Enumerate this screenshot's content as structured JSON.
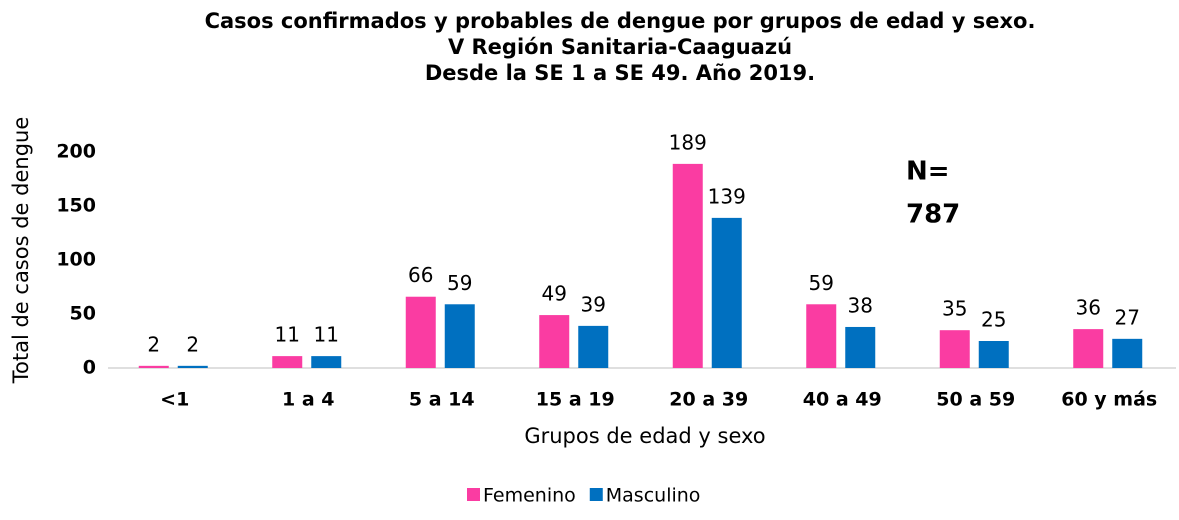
{
  "chart_data": {
    "type": "bar",
    "title": [
      "Casos confirmados y probables de dengue por grupos de edad y sexo.",
      "V Región Sanitaria-Caaguazú",
      "Desde la SE 1 a SE 49. Año 2019."
    ],
    "x_label": "Grupos de edad y sexo",
    "y_label": "Total de casos de dengue",
    "annotation": [
      "N=",
      "787"
    ],
    "categories": [
      "<1",
      "1 a 4",
      "5 a 14",
      "15 a 19",
      "20 a 39",
      "40 a 49",
      "50 a 59",
      "60 y más"
    ],
    "series": [
      {
        "name": "Femenino",
        "color": "#fa3ca2",
        "values": [
          2,
          11,
          66,
          49,
          189,
          59,
          35,
          36
        ]
      },
      {
        "name": "Masculino",
        "color": "#0070c0",
        "values": [
          2,
          11,
          59,
          39,
          139,
          38,
          25,
          27
        ]
      }
    ],
    "ylim": [
      0,
      200
    ],
    "yticks": [
      0,
      50,
      100,
      150,
      200
    ],
    "grid": false,
    "legend": "bottom"
  }
}
